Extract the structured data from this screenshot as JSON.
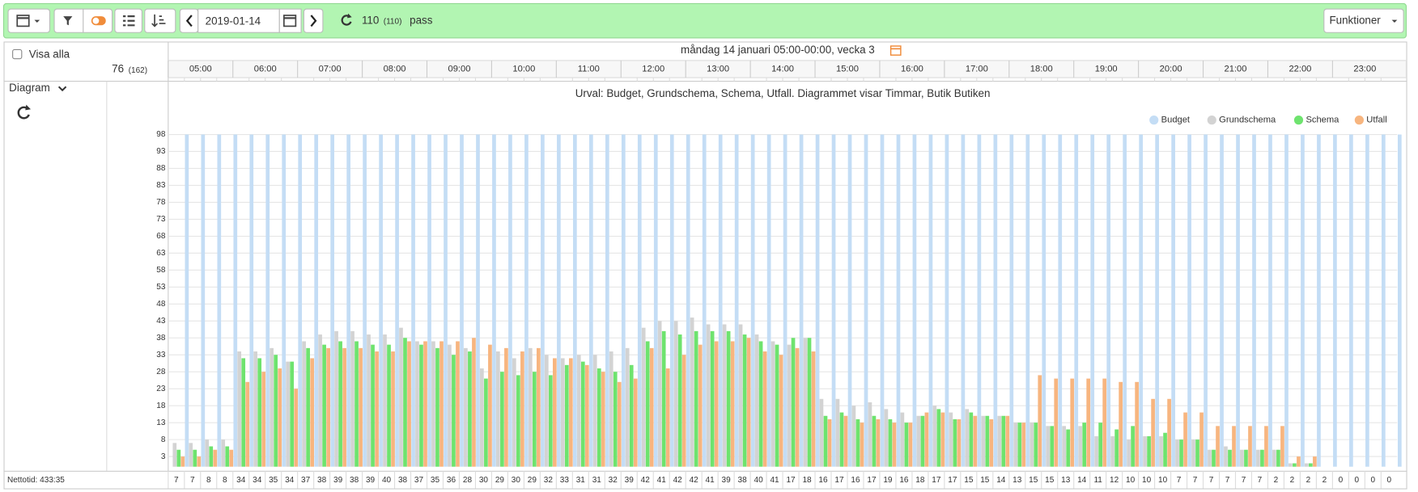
{
  "toolbar": {
    "date": "2019-01-14",
    "pass_count": "110",
    "pass_total": "(110)",
    "pass_label": "pass",
    "menu": "Funktioner"
  },
  "sidebar": {
    "show_all": "Visa alla",
    "count": "76",
    "count_total": "(162)",
    "view": "Diagram"
  },
  "header": {
    "title": "måndag 14 januari 05:00-00:00, vecka 3",
    "hours": [
      "05:00",
      "06:00",
      "07:00",
      "08:00",
      "09:00",
      "10:00",
      "11:00",
      "12:00",
      "13:00",
      "14:00",
      "15:00",
      "16:00",
      "17:00",
      "18:00",
      "19:00",
      "20:00",
      "21:00",
      "22:00",
      "23:00"
    ]
  },
  "chart_data": {
    "type": "bar",
    "title": "Urval: Budget, Grundschema, Schema, Utfall. Diagrammet visar Timmar, Butik Butiken",
    "ylim": [
      0,
      98
    ],
    "yticks": [
      3,
      8,
      13,
      18,
      23,
      28,
      33,
      38,
      43,
      48,
      53,
      58,
      63,
      68,
      73,
      78,
      83,
      88,
      93,
      98
    ],
    "grid": true,
    "legend": "top-right",
    "series": [
      {
        "name": "Budget",
        "color": "#c4ddf5",
        "values": [
          98,
          98,
          98,
          98,
          98,
          98,
          98,
          98,
          98,
          98,
          98,
          98,
          98,
          98,
          98,
          98,
          98,
          98,
          98,
          98,
          98,
          98,
          98,
          98,
          98,
          98,
          98,
          98,
          98,
          98,
          98,
          98,
          98,
          98,
          98,
          98,
          98,
          98,
          98,
          98,
          98,
          98,
          98,
          98,
          98,
          98,
          98,
          98,
          98,
          98,
          98,
          98,
          98,
          98,
          98,
          98,
          98,
          98,
          98,
          98,
          98,
          98,
          98,
          98,
          98,
          98,
          98,
          98,
          98,
          98,
          98,
          98,
          98,
          98,
          98,
          98
        ]
      },
      {
        "name": "Grundschema",
        "color": "#d3d3d3",
        "values": [
          7,
          7,
          8,
          8,
          34,
          34,
          35,
          31,
          37,
          39,
          40,
          40,
          39,
          39,
          41,
          37,
          37,
          36,
          35,
          29,
          34,
          32,
          35,
          33,
          32,
          33,
          33,
          34,
          35,
          41,
          43,
          43,
          44,
          42,
          42,
          42,
          39,
          37,
          36,
          38,
          20,
          20,
          18,
          19,
          17,
          16,
          15,
          18,
          16,
          17,
          15,
          15,
          13,
          13,
          12,
          12,
          12,
          9,
          9,
          8,
          9,
          9,
          8,
          8,
          5,
          6,
          5,
          5,
          5,
          1,
          1,
          0,
          0,
          0,
          0,
          0
        ]
      },
      {
        "name": "Schema",
        "color": "#6ee36e",
        "values": [
          5,
          5,
          6,
          6,
          32,
          32,
          33,
          31,
          35,
          36,
          37,
          37,
          36,
          36,
          38,
          36,
          35,
          33,
          34,
          26,
          28,
          27,
          28,
          27,
          30,
          31,
          29,
          28,
          30,
          37,
          40,
          39,
          40,
          40,
          40,
          39,
          37,
          36,
          38,
          38,
          15,
          16,
          14,
          15,
          14,
          13,
          15,
          17,
          14,
          16,
          15,
          15,
          13,
          13,
          12,
          11,
          13,
          13,
          11,
          12,
          9,
          10,
          8,
          8,
          5,
          5,
          5,
          5,
          5,
          1,
          1,
          0,
          0,
          0,
          0,
          0
        ]
      },
      {
        "name": "Utfall",
        "color": "#f7b57f",
        "values": [
          3,
          3,
          5,
          5,
          25,
          28,
          29,
          23,
          32,
          35,
          35,
          35,
          34,
          34,
          37,
          37,
          37,
          37,
          38,
          36,
          35,
          34,
          35,
          32,
          32,
          30,
          28,
          25,
          26,
          35,
          29,
          33,
          36,
          37,
          37,
          38,
          34,
          33,
          35,
          34,
          14,
          15,
          13,
          14,
          13,
          13,
          16,
          16,
          14,
          15,
          14,
          15,
          13,
          27,
          26,
          26,
          26,
          26,
          25,
          25,
          20,
          20,
          16,
          16,
          12,
          12,
          12,
          12,
          12,
          3,
          3,
          0,
          0,
          0,
          0,
          0
        ]
      }
    ]
  },
  "footer": {
    "label": "Nettotid: 433:35",
    "row": [
      "7",
      "7",
      "8",
      "8",
      "34",
      "34",
      "35",
      "34",
      "37",
      "38",
      "39",
      "38",
      "39",
      "40",
      "38",
      "37",
      "35",
      "36",
      "28",
      "30",
      "29",
      "30",
      "29",
      "32",
      "33",
      "31",
      "31",
      "32",
      "39",
      "42",
      "41",
      "42",
      "42",
      "41",
      "39",
      "38",
      "40",
      "41",
      "17",
      "18",
      "16",
      "17",
      "16",
      "17",
      "19",
      "16",
      "18",
      "17",
      "17",
      "15",
      "15",
      "14",
      "13",
      "15",
      "15",
      "13",
      "14",
      "11",
      "12",
      "10",
      "10",
      "10",
      "7",
      "7",
      "7",
      "7",
      "7",
      "7",
      "2",
      "2",
      "2",
      "2",
      "0",
      "0",
      "0",
      "0"
    ]
  }
}
